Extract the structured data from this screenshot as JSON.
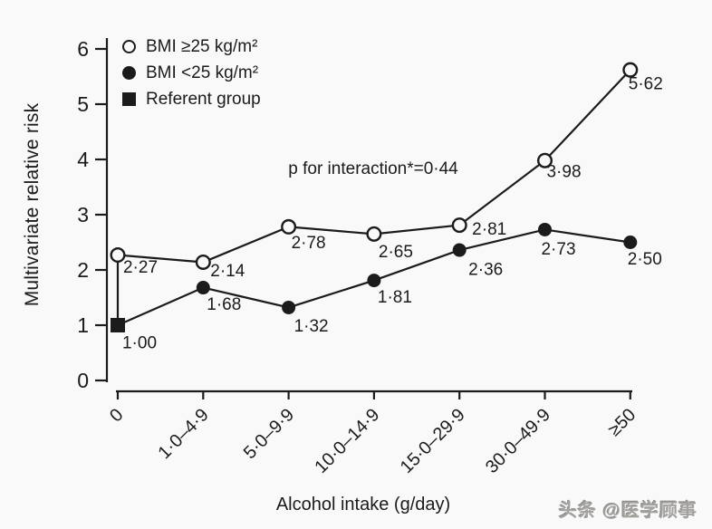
{
  "figure": {
    "background": "#faf9fa",
    "ink": "#1b1b1b",
    "watermark_text": "头条 @医学顾事",
    "watermark_color": "#a3a29e"
  },
  "chart_data": {
    "type": "line",
    "title": "",
    "xlabel": "Alcohol intake (g/day)",
    "ylabel": "Multivariate relative risk",
    "annotation": "p for interaction*=0·44",
    "categories": [
      "0",
      "1·0–4·9",
      "5·0–9·9",
      "10·0–14·9",
      "15·0–29·9",
      "30·0–49·9",
      "≥50"
    ],
    "ylim": [
      0,
      6
    ],
    "yticks": [
      "0",
      "1",
      "2",
      "3",
      "4",
      "5",
      "6"
    ],
    "grid": false,
    "legend_position": "top-left",
    "series": [
      {
        "name": "BMI ≥25 kg/m²",
        "marker": "open-circle",
        "values": [
          2.27,
          2.14,
          2.78,
          2.65,
          2.81,
          3.98,
          5.62
        ],
        "point_labels": [
          "2·27",
          "2·14",
          "2·78",
          "2·65",
          "2·81",
          "3·98",
          "5·62"
        ]
      },
      {
        "name": "BMI <25 kg/m²",
        "marker": "filled-circle",
        "values": [
          1.0,
          1.68,
          1.32,
          1.81,
          2.36,
          2.73,
          2.5
        ],
        "point_labels": [
          "1·00",
          "1·68",
          "1·32",
          "1·81",
          "2·36",
          "2·73",
          "2·50"
        ]
      }
    ],
    "referent": {
      "name": "Referent group",
      "marker": "filled-square",
      "series_index": 1,
      "point_index": 0,
      "value": 1.0
    }
  }
}
